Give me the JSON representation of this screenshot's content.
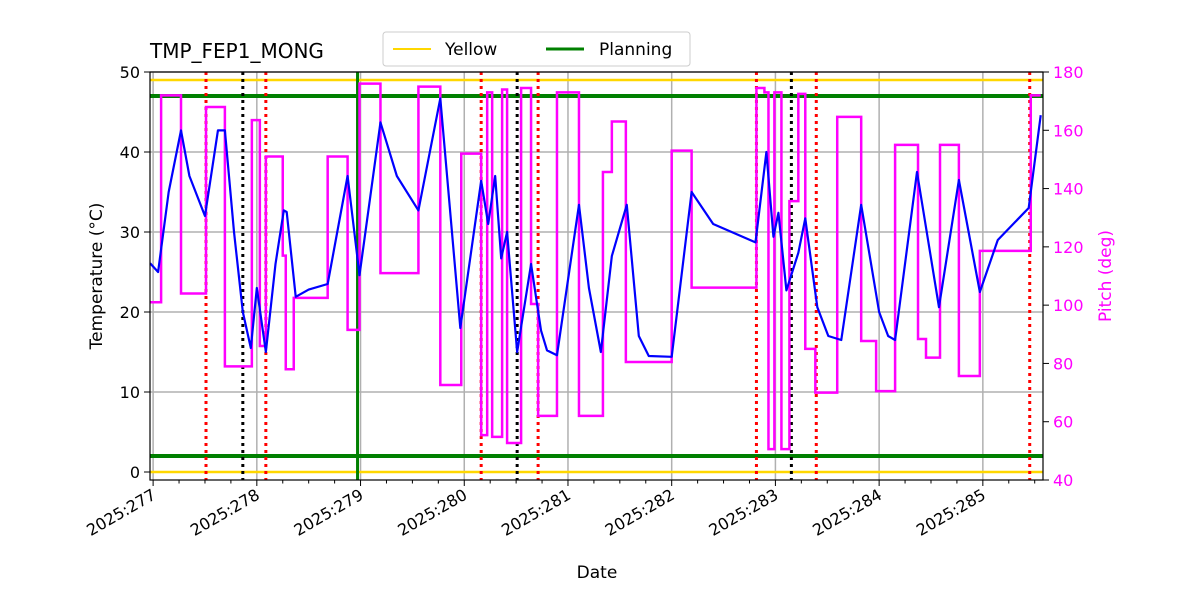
{
  "chart_data": {
    "type": "line",
    "title": "TMP_FEP1_MONG",
    "xlabel": "Date",
    "ylabel": "Temperature (°C)",
    "y2label": "Pitch (deg)",
    "xlim": [
      276.97,
      285.58
    ],
    "ylim": [
      -1,
      50
    ],
    "y2lim": [
      40,
      180
    ],
    "grid": true,
    "legend_placement": "top-center",
    "x_ticks": [
      277,
      278,
      279,
      280,
      281,
      282,
      283,
      284,
      285
    ],
    "x_tick_labels": [
      "2025:277",
      "2025:278",
      "2025:279",
      "2025:280",
      "2025:281",
      "2025:282",
      "2025:283",
      "2025:284",
      "2025:285"
    ],
    "y_ticks": [
      0,
      10,
      20,
      30,
      40,
      50
    ],
    "y2_ticks": [
      40,
      60,
      80,
      100,
      120,
      140,
      160,
      180
    ],
    "legend": [
      {
        "name": "Yellow",
        "color": "#ffd700"
      },
      {
        "name": "Planning",
        "color": "#008000"
      }
    ],
    "limits": [
      {
        "legend": "Yellow",
        "value": 49,
        "color": "#ffd700"
      },
      {
        "legend": "Yellow",
        "value": 0,
        "color": "#ffd700"
      },
      {
        "legend": "Planning",
        "value": 47,
        "color": "#008000"
      },
      {
        "legend": "Planning",
        "value": 2,
        "color": "#008000"
      }
    ],
    "vlines": [
      {
        "x": 277.51,
        "color": "#ff0000",
        "style": "dotted"
      },
      {
        "x": 278.087,
        "color": "#ff0000",
        "style": "dotted"
      },
      {
        "x": 280.163,
        "color": "#ff0000",
        "style": "dotted"
      },
      {
        "x": 280.712,
        "color": "#ff0000",
        "style": "dotted"
      },
      {
        "x": 282.817,
        "color": "#ff0000",
        "style": "dotted"
      },
      {
        "x": 283.394,
        "color": "#ff0000",
        "style": "dotted"
      },
      {
        "x": 285.452,
        "color": "#ff0000",
        "style": "dotted"
      },
      {
        "x": 277.865,
        "color": "#000000",
        "style": "dotted"
      },
      {
        "x": 280.51,
        "color": "#000000",
        "style": "dotted"
      },
      {
        "x": 283.154,
        "color": "#000000",
        "style": "dotted"
      },
      {
        "x": 278.971,
        "color": "#008000",
        "style": "solid"
      }
    ],
    "temperature": {
      "color": "#0000ff",
      "points": [
        [
          276.971,
          26.1
        ],
        [
          277.048,
          25
        ],
        [
          277.15,
          35
        ],
        [
          277.269,
          42.7
        ],
        [
          277.35,
          37
        ],
        [
          277.5,
          32
        ],
        [
          277.625,
          42.7
        ],
        [
          277.692,
          42.7
        ],
        [
          277.78,
          30
        ],
        [
          277.865,
          20
        ],
        [
          277.942,
          15.5
        ],
        [
          278.0,
          23
        ],
        [
          278.087,
          15
        ],
        [
          278.18,
          26
        ],
        [
          278.26,
          32.7
        ],
        [
          278.288,
          32.5
        ],
        [
          278.375,
          21.9
        ],
        [
          278.5,
          22.8
        ],
        [
          278.683,
          23.5
        ],
        [
          278.875,
          37
        ],
        [
          278.99,
          24.6
        ],
        [
          279.192,
          43.7
        ],
        [
          279.35,
          37
        ],
        [
          279.558,
          32.7
        ],
        [
          279.769,
          46.7
        ],
        [
          279.962,
          18
        ],
        [
          280.163,
          36.4
        ],
        [
          280.231,
          31
        ],
        [
          280.298,
          37
        ],
        [
          280.356,
          26.7
        ],
        [
          280.413,
          30
        ],
        [
          280.51,
          15
        ],
        [
          280.644,
          26
        ],
        [
          280.74,
          17.7
        ],
        [
          280.798,
          15.2
        ],
        [
          280.894,
          14.6
        ],
        [
          281.106,
          33.4
        ],
        [
          281.202,
          23
        ],
        [
          281.317,
          15
        ],
        [
          281.423,
          27
        ],
        [
          281.567,
          33.4
        ],
        [
          281.683,
          17
        ],
        [
          281.779,
          14.5
        ],
        [
          282.0,
          14.4
        ],
        [
          282.192,
          35
        ],
        [
          282.4,
          31
        ],
        [
          282.808,
          28.7
        ],
        [
          282.913,
          40
        ],
        [
          282.981,
          29.4
        ],
        [
          283.029,
          32.4
        ],
        [
          283.106,
          22.7
        ],
        [
          283.221,
          27.4
        ],
        [
          283.288,
          31.7
        ],
        [
          283.404,
          20.6
        ],
        [
          283.51,
          17
        ],
        [
          283.635,
          16.5
        ],
        [
          283.827,
          33.4
        ],
        [
          284.0,
          20
        ],
        [
          284.087,
          17
        ],
        [
          284.154,
          16.5
        ],
        [
          284.365,
          37.5
        ],
        [
          284.577,
          20.6
        ],
        [
          284.769,
          36.5
        ],
        [
          284.971,
          22.5
        ],
        [
          285.144,
          29
        ],
        [
          285.442,
          33
        ],
        [
          285.558,
          44.6
        ]
      ]
    },
    "pitch": {
      "color": "#ff00ff",
      "steps": [
        [
          276.971,
          101
        ],
        [
          277.077,
          172
        ],
        [
          277.269,
          104
        ],
        [
          277.51,
          168
        ],
        [
          277.692,
          79
        ],
        [
          277.952,
          163.5
        ],
        [
          278.029,
          86
        ],
        [
          278.087,
          151
        ],
        [
          278.25,
          117
        ],
        [
          278.279,
          78
        ],
        [
          278.356,
          102.5
        ],
        [
          278.683,
          151
        ],
        [
          278.875,
          91.5
        ],
        [
          278.99,
          176
        ],
        [
          279.192,
          111
        ],
        [
          279.558,
          175
        ],
        [
          279.769,
          72.6
        ],
        [
          279.971,
          152
        ],
        [
          280.163,
          55.4
        ],
        [
          280.221,
          173
        ],
        [
          280.269,
          54.8
        ],
        [
          280.365,
          174
        ],
        [
          280.413,
          52.7
        ],
        [
          280.548,
          174.5
        ],
        [
          280.644,
          100.4
        ],
        [
          280.712,
          62
        ],
        [
          280.894,
          173
        ],
        [
          281.106,
          62
        ],
        [
          281.337,
          145.7
        ],
        [
          281.423,
          163
        ],
        [
          281.558,
          80.5
        ],
        [
          282.0,
          153
        ],
        [
          282.192,
          106
        ],
        [
          282.817,
          174.5
        ],
        [
          282.894,
          173
        ],
        [
          282.933,
          50.6
        ],
        [
          282.99,
          173
        ],
        [
          283.058,
          50.6
        ],
        [
          283.135,
          135.7
        ],
        [
          283.221,
          172.5
        ],
        [
          283.288,
          85
        ],
        [
          283.385,
          70
        ],
        [
          283.596,
          164.6
        ],
        [
          283.827,
          87.7
        ],
        [
          283.971,
          70.5
        ],
        [
          284.154,
          155
        ],
        [
          284.375,
          88.4
        ],
        [
          284.452,
          82
        ],
        [
          284.587,
          155
        ],
        [
          284.769,
          75.7
        ],
        [
          284.971,
          118.6
        ],
        [
          285.462,
          172
        ],
        [
          285.558,
          172
        ]
      ]
    }
  }
}
